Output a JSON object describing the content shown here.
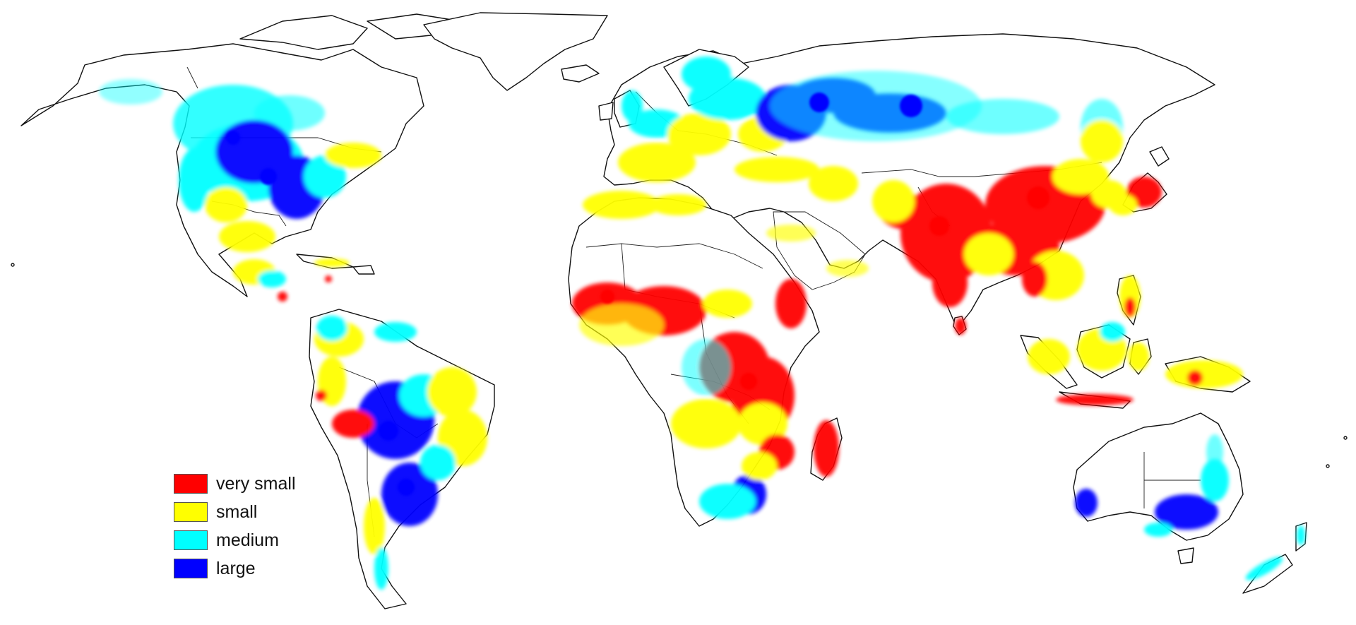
{
  "legend": {
    "items": [
      {
        "label": "very small",
        "color": "#ff0000"
      },
      {
        "label": "small",
        "color": "#ffff00"
      },
      {
        "label": "medium",
        "color": "#00ffff"
      },
      {
        "label": "large",
        "color": "#0000ff"
      }
    ]
  },
  "colors": {
    "very_small": "#ff0000",
    "small": "#ffff00",
    "medium": "#00ffff",
    "large": "#0000ff",
    "coastline": "#111111",
    "background": "#ffffff"
  }
}
